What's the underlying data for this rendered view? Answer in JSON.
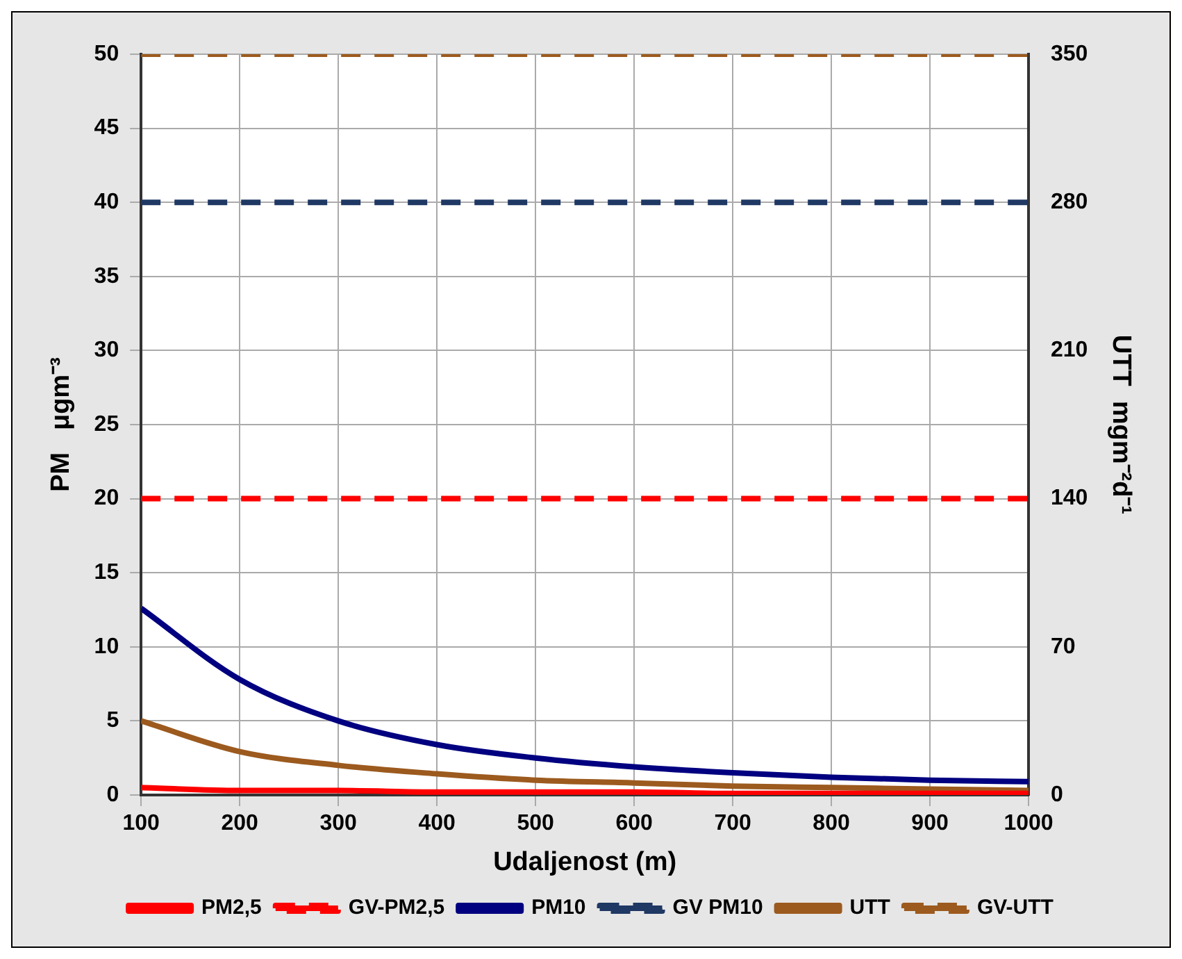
{
  "chart_data": {
    "type": "line",
    "xlabel": "Udaljenost (m)",
    "ylabel": "PM   μgm⁻³",
    "y2label": "UTT  mgm⁻²d⁻¹",
    "x": [
      100,
      200,
      300,
      400,
      500,
      600,
      700,
      800,
      900,
      1000
    ],
    "series": [
      {
        "name": "PM2,5",
        "color": "#ff0000",
        "values": [
          0.5,
          0.3,
          0.3,
          0.2,
          0.2,
          0.2,
          0.1,
          0.1,
          0.1,
          0.1
        ]
      },
      {
        "name": "GV-PM2,5",
        "color": "#ff0000",
        "line_style": "dashed",
        "values": [
          20,
          20,
          20,
          20,
          20,
          20,
          20,
          20,
          20,
          20
        ]
      },
      {
        "name": "PM10",
        "color": "#000080",
        "values": [
          12.6,
          7.8,
          5.0,
          3.4,
          2.5,
          1.9,
          1.5,
          1.2,
          1.0,
          0.9
        ]
      },
      {
        "name": "GV PM10",
        "color": "#1f3864",
        "line_style": "dashed",
        "values": [
          40,
          40,
          40,
          40,
          40,
          40,
          40,
          40,
          40,
          40
        ]
      },
      {
        "name": "UTT",
        "color": "#9c5a1e",
        "axis": "y2",
        "values": [
          35,
          20.5,
          14,
          10,
          7,
          5.7,
          4.2,
          3.5,
          2.8,
          2.1
        ]
      },
      {
        "name": "GV-UTT",
        "color": "#9c5a1e",
        "axis": "y2",
        "line_style": "dashed",
        "values": [
          350,
          350,
          350,
          350,
          350,
          350,
          350,
          350,
          350,
          350
        ]
      }
    ],
    "xlim": [
      100,
      1000
    ],
    "xticks": [
      100,
      200,
      300,
      400,
      500,
      600,
      700,
      800,
      900,
      1000
    ],
    "ylim": [
      0,
      50
    ],
    "yticks": [
      0,
      5,
      10,
      15,
      20,
      25,
      30,
      35,
      40,
      45,
      50
    ],
    "y2lim": [
      0,
      350
    ],
    "y2ticks": [
      0,
      70,
      140,
      210,
      280,
      350
    ],
    "grid": true,
    "legend": "bottom",
    "marker": "none"
  }
}
